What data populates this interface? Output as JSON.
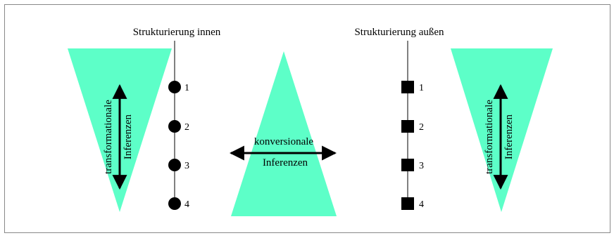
{
  "diagram": {
    "left_heading": "Strukturierung innen",
    "right_heading": "Strukturierung außen",
    "left_transform": {
      "line1": "transformationale",
      "line2": "Inferenzen"
    },
    "center_conversion": {
      "line1": "konversionale",
      "line2": "Inferenzen"
    },
    "right_transform": {
      "line1": "transformationale",
      "line2": "Inferenzen"
    },
    "left_levels": [
      "1",
      "2",
      "3",
      "4"
    ],
    "right_levels": [
      "1",
      "2",
      "3",
      "4"
    ]
  },
  "colors": {
    "triangle_fill": "#5dffc8",
    "stroke": "#000000",
    "frame": "#888888"
  }
}
